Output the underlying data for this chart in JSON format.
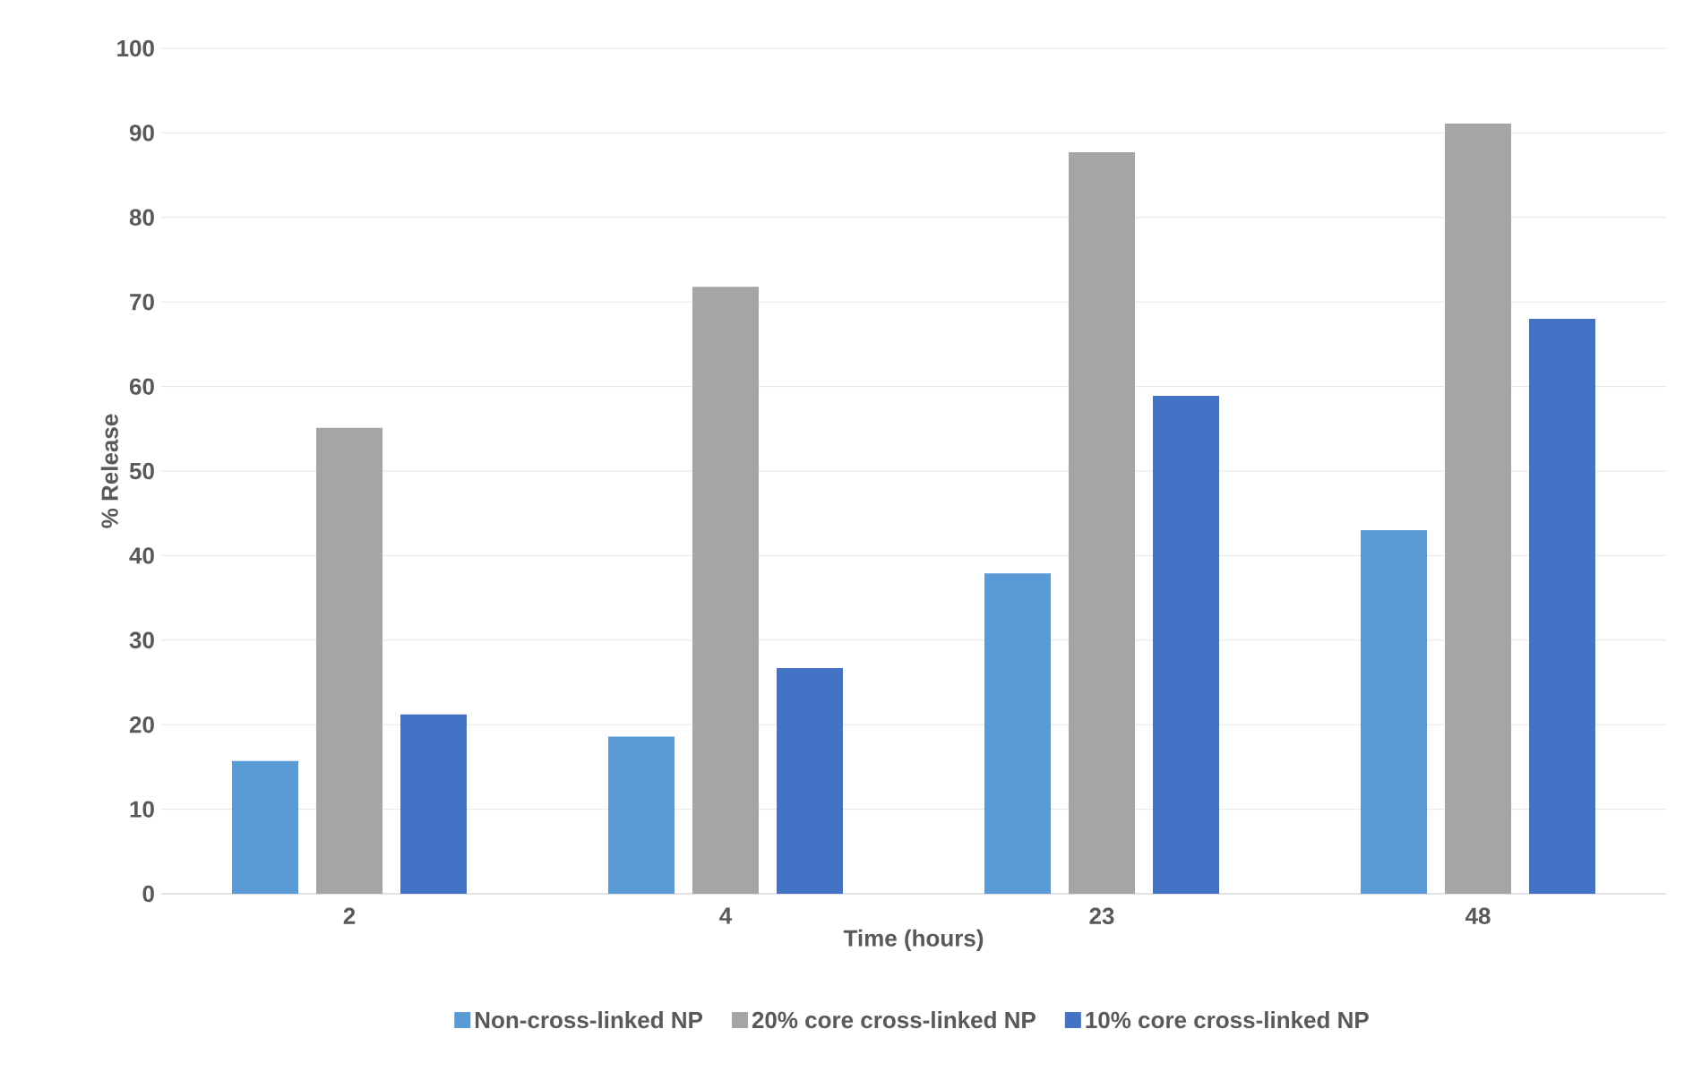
{
  "chart_data": {
    "type": "bar",
    "xlabel": "Time  (hours)",
    "ylabel": "% Release",
    "categories": [
      "2",
      "4",
      "23",
      "48"
    ],
    "series": [
      {
        "name": "Non-cross-linked NP",
        "color": "#5b9bd5",
        "values": [
          15.7,
          18.6,
          37.9,
          43
        ]
      },
      {
        "name": "20% core cross-linked NP",
        "color": "#a5a5a5",
        "values": [
          55.1,
          71.8,
          87.7,
          91.1
        ]
      },
      {
        "name": "10% core cross-linked NP",
        "color": "#4472c4",
        "values": [
          21.2,
          26.7,
          58.9,
          68
        ]
      }
    ],
    "ylim": [
      0,
      100
    ],
    "yticks": [
      0,
      10,
      20,
      30,
      40,
      50,
      60,
      70,
      80,
      90,
      100
    ],
    "grid": "y",
    "legend": "bottom"
  }
}
